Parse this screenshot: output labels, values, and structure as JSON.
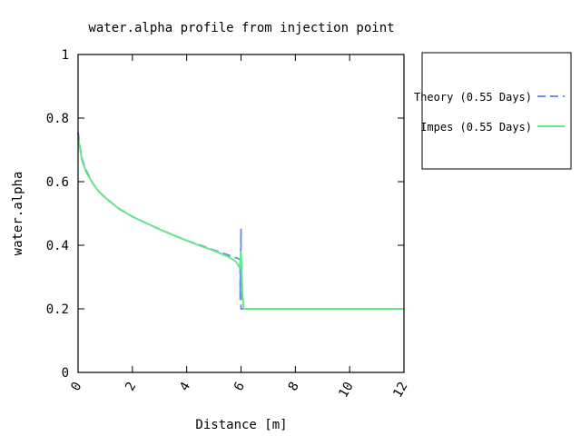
{
  "chart_data": {
    "type": "line",
    "title": "water.alpha profile from injection point",
    "xlabel": "Distance [m]",
    "ylabel": "water.alpha",
    "xlim": [
      0,
      12
    ],
    "ylim": [
      0,
      1
    ],
    "xticks": [
      "0",
      "2",
      "4",
      "6",
      "8",
      "10",
      "12"
    ],
    "yticks": [
      "0",
      "0.2",
      "0.4",
      "0.6",
      "0.8",
      "1"
    ],
    "grid": false,
    "legend_position": "outside-right-top",
    "series": [
      {
        "name": "Theory (0.55 Days)",
        "style": "dashed",
        "color": "#6f8ff0",
        "x": [
          0,
          0.05,
          0.15,
          0.3,
          0.5,
          0.75,
          1.0,
          1.5,
          2.0,
          2.5,
          3.0,
          3.5,
          4.0,
          4.5,
          5.0,
          5.5,
          5.9,
          5.97,
          5.97,
          6.0,
          6.0,
          6.3,
          7,
          8,
          9,
          10,
          11,
          12
        ],
        "y": [
          0.755,
          0.72,
          0.67,
          0.635,
          0.6,
          0.57,
          0.55,
          0.515,
          0.49,
          0.47,
          0.45,
          0.432,
          0.415,
          0.4,
          0.385,
          0.37,
          0.358,
          0.355,
          0.23,
          0.45,
          0.2,
          0.2,
          0.2,
          0.2,
          0.2,
          0.2,
          0.2,
          0.2
        ]
      },
      {
        "name": "Impes (0.55 Days)",
        "style": "solid",
        "color": "#66e88a",
        "x": [
          0,
          0.05,
          0.15,
          0.3,
          0.5,
          0.75,
          1.0,
          1.5,
          2.0,
          2.5,
          3.0,
          3.5,
          4.0,
          4.5,
          5.0,
          5.5,
          5.8,
          5.95,
          6.0,
          6.05,
          6.1,
          6.3,
          7,
          8,
          9,
          10,
          11,
          12
        ],
        "y": [
          0.74,
          0.715,
          0.665,
          0.63,
          0.6,
          0.57,
          0.55,
          0.515,
          0.49,
          0.47,
          0.45,
          0.432,
          0.415,
          0.398,
          0.383,
          0.365,
          0.35,
          0.33,
          0.38,
          0.25,
          0.2,
          0.2,
          0.2,
          0.2,
          0.2,
          0.2,
          0.2,
          0.2
        ]
      }
    ]
  }
}
